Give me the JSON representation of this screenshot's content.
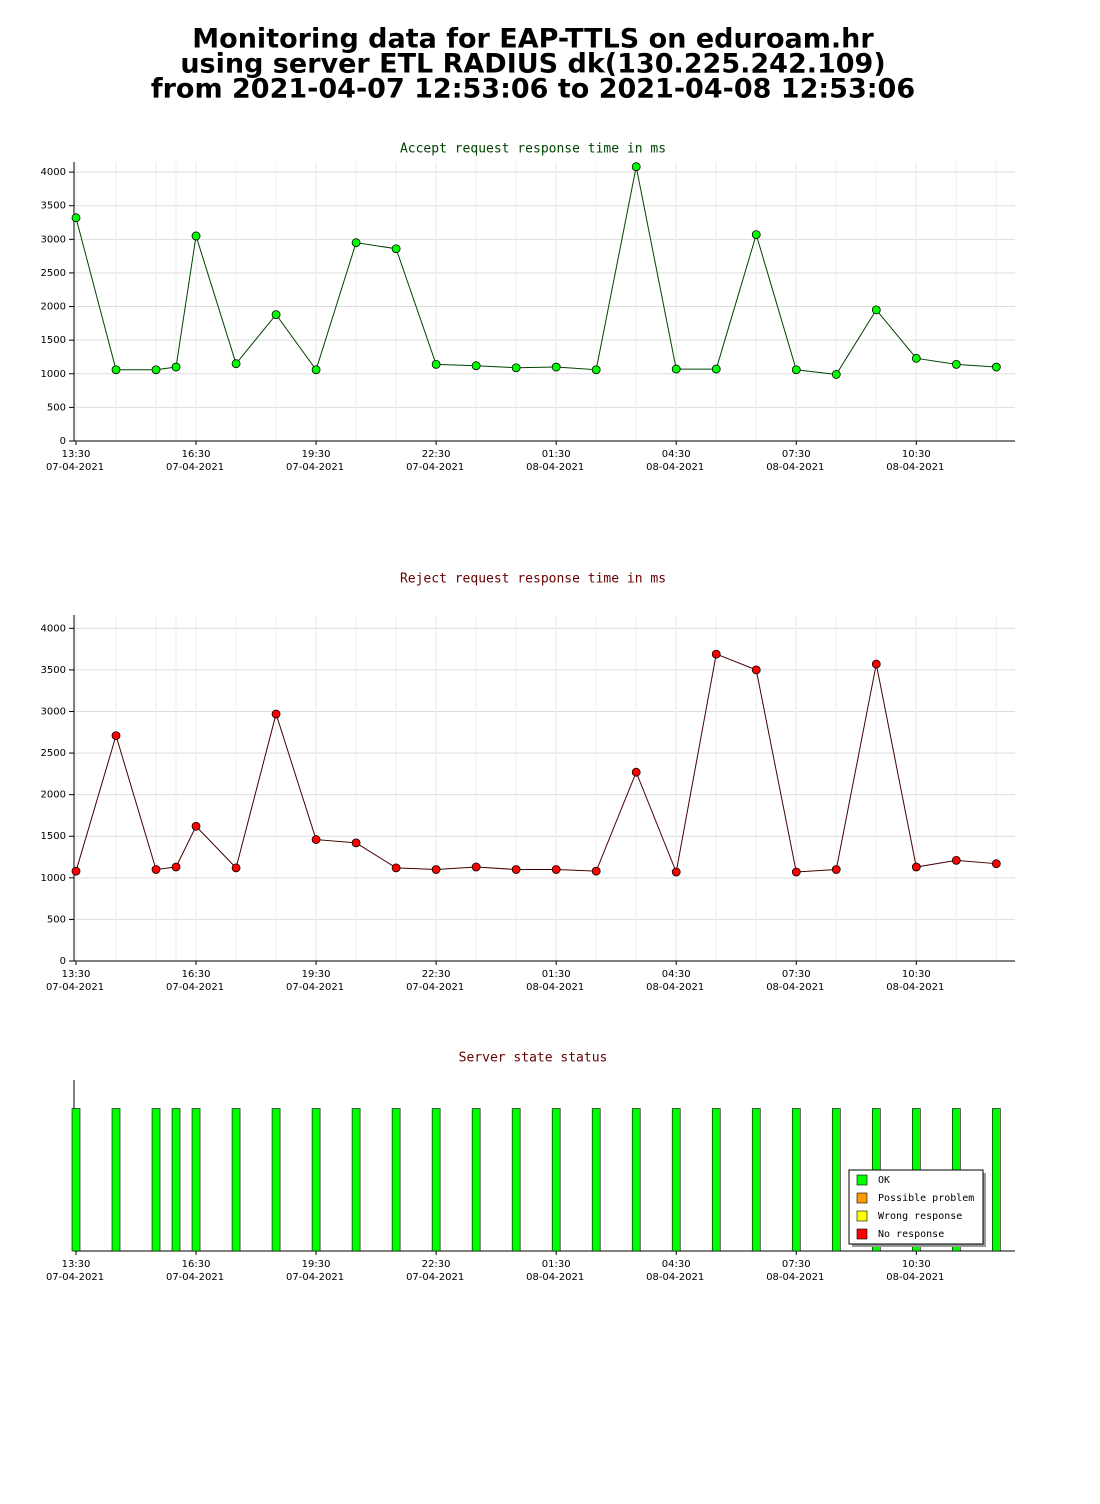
{
  "title": [
    "Monitoring data for EAP-TTLS on eduroam.hr",
    "using server ETL RADIUS dk(130.225.242.109)",
    "from 2021-04-07 12:53:06 to 2021-04-08 12:53:06"
  ],
  "chart_data": [
    {
      "type": "line",
      "title": "Accept request response time in ms",
      "title_color": "#004400",
      "x": [
        "2021-04-07 13:30",
        "2021-04-07 14:30",
        "2021-04-07 15:30",
        "2021-04-07 16:00",
        "2021-04-07 16:30",
        "2021-04-07 17:30",
        "2021-04-07 18:30",
        "2021-04-07 19:30",
        "2021-04-07 20:30",
        "2021-04-07 21:30",
        "2021-04-07 22:30",
        "2021-04-07 23:30",
        "2021-04-08 00:30",
        "2021-04-08 01:30",
        "2021-04-08 02:30",
        "2021-04-08 03:30",
        "2021-04-08 04:30",
        "2021-04-08 05:30",
        "2021-04-08 06:30",
        "2021-04-08 07:30",
        "2021-04-08 08:30",
        "2021-04-08 09:30",
        "2021-04-08 10:30",
        "2021-04-08 11:30",
        "2021-04-08 12:30"
      ],
      "series": [
        {
          "color": "#004400",
          "marker_color": "#00ff00",
          "values": [
            3320,
            1060,
            1060,
            1100,
            3050,
            1150,
            1880,
            1060,
            2950,
            2860,
            1140,
            1120,
            1090,
            1100,
            1060,
            4080,
            1070,
            1070,
            3070,
            1060,
            990,
            1950,
            1230,
            1140,
            1100
          ]
        }
      ],
      "xlim": [
        "2021-04-07 13:27",
        "2021-04-08 12:58"
      ],
      "xticks": [
        {
          "value": "2021-04-07 13:30",
          "label": [
            "13:30",
            "07-04-2021"
          ]
        },
        {
          "value": "2021-04-07 16:30",
          "label": [
            "16:30",
            "07-04-2021"
          ]
        },
        {
          "value": "2021-04-07 19:30",
          "label": [
            "19:30",
            "07-04-2021"
          ]
        },
        {
          "value": "2021-04-07 22:30",
          "label": [
            "22:30",
            "07-04-2021"
          ]
        },
        {
          "value": "2021-04-08 01:30",
          "label": [
            "01:30",
            "08-04-2021"
          ]
        },
        {
          "value": "2021-04-08 04:30",
          "label": [
            "04:30",
            "08-04-2021"
          ]
        },
        {
          "value": "2021-04-08 07:30",
          "label": [
            "07:30",
            "08-04-2021"
          ]
        },
        {
          "value": "2021-04-08 10:30",
          "label": [
            "10:30",
            "08-04-2021"
          ]
        }
      ],
      "ylim": [
        0,
        4150
      ],
      "yticks": [
        0,
        500,
        1000,
        1500,
        2000,
        2500,
        3000,
        3500,
        4000
      ],
      "grid": true
    },
    {
      "type": "line",
      "title": "Reject request response time in ms",
      "title_color": "#660000",
      "x": [
        "2021-04-07 13:30",
        "2021-04-07 14:30",
        "2021-04-07 15:30",
        "2021-04-07 16:00",
        "2021-04-07 16:30",
        "2021-04-07 17:30",
        "2021-04-07 18:30",
        "2021-04-07 19:30",
        "2021-04-07 20:30",
        "2021-04-07 21:30",
        "2021-04-07 22:30",
        "2021-04-07 23:30",
        "2021-04-08 00:30",
        "2021-04-08 01:30",
        "2021-04-08 02:30",
        "2021-04-08 03:30",
        "2021-04-08 04:30",
        "2021-04-08 05:30",
        "2021-04-08 06:30",
        "2021-04-08 07:30",
        "2021-04-08 08:30",
        "2021-04-08 09:30",
        "2021-04-08 10:30",
        "2021-04-08 11:30",
        "2021-04-08 12:30"
      ],
      "series": [
        {
          "color": "#440000",
          "marker_color": "#ff0000",
          "values": [
            1080,
            2710,
            1100,
            1130,
            1620,
            1120,
            2970,
            1460,
            1420,
            1120,
            1100,
            1130,
            1100,
            1100,
            1080,
            2270,
            1070,
            3690,
            3500,
            1070,
            1100,
            3570,
            1130,
            1210,
            1170
          ]
        }
      ],
      "xlim": [
        "2021-04-07 13:27",
        "2021-04-08 12:58"
      ],
      "xticks": [
        {
          "value": "2021-04-07 13:30",
          "label": [
            "13:30",
            "07-04-2021"
          ]
        },
        {
          "value": "2021-04-07 16:30",
          "label": [
            "16:30",
            "07-04-2021"
          ]
        },
        {
          "value": "2021-04-07 19:30",
          "label": [
            "19:30",
            "07-04-2021"
          ]
        },
        {
          "value": "2021-04-07 22:30",
          "label": [
            "22:30",
            "07-04-2021"
          ]
        },
        {
          "value": "2021-04-08 01:30",
          "label": [
            "01:30",
            "08-04-2021"
          ]
        },
        {
          "value": "2021-04-08 04:30",
          "label": [
            "04:30",
            "08-04-2021"
          ]
        },
        {
          "value": "2021-04-08 07:30",
          "label": [
            "07:30",
            "08-04-2021"
          ]
        },
        {
          "value": "2021-04-08 10:30",
          "label": [
            "10:30",
            "08-04-2021"
          ]
        }
      ],
      "ylim": [
        0,
        4160
      ],
      "yticks": [
        0,
        500,
        1000,
        1500,
        2000,
        2500,
        3000,
        3500,
        4000
      ],
      "grid": true
    },
    {
      "type": "status",
      "title": "Server state status",
      "title_color": "#660000",
      "x": [
        "2021-04-07 13:30",
        "2021-04-07 14:30",
        "2021-04-07 15:30",
        "2021-04-07 16:00",
        "2021-04-07 16:30",
        "2021-04-07 17:30",
        "2021-04-07 18:30",
        "2021-04-07 19:30",
        "2021-04-07 20:30",
        "2021-04-07 21:30",
        "2021-04-07 22:30",
        "2021-04-07 23:30",
        "2021-04-08 00:30",
        "2021-04-08 01:30",
        "2021-04-08 02:30",
        "2021-04-08 03:30",
        "2021-04-08 04:30",
        "2021-04-08 05:30",
        "2021-04-08 06:30",
        "2021-04-08 07:30",
        "2021-04-08 08:30",
        "2021-04-08 09:30",
        "2021-04-08 10:30",
        "2021-04-08 11:30",
        "2021-04-08 12:30"
      ],
      "series": [
        {
          "name": "OK",
          "color": "#00ff00",
          "values": [
            1,
            1,
            1,
            1,
            1,
            1,
            1,
            1,
            1,
            1,
            1,
            1,
            1,
            1,
            1,
            1,
            1,
            1,
            1,
            1,
            1,
            1,
            1,
            1,
            1
          ]
        },
        {
          "name": "Possible problem",
          "color": "#ff9900",
          "values": [
            0,
            0,
            0,
            0,
            0,
            0,
            0,
            0,
            0,
            0,
            0,
            0,
            0,
            0,
            0,
            0,
            0,
            0,
            0,
            0,
            0,
            0,
            0,
            0,
            0
          ]
        },
        {
          "name": "Wrong response",
          "color": "#ffff00",
          "values": [
            0,
            0,
            0,
            0,
            0,
            0,
            0,
            0,
            0,
            0,
            0,
            0,
            0,
            0,
            0,
            0,
            0,
            0,
            0,
            0,
            0,
            0,
            0,
            0,
            0
          ]
        },
        {
          "name": "No response",
          "color": "#ff0000",
          "values": [
            0,
            0,
            0,
            0,
            0,
            0,
            0,
            0,
            0,
            0,
            0,
            0,
            0,
            0,
            0,
            0,
            0,
            0,
            0,
            0,
            0,
            0,
            0,
            0,
            0
          ]
        }
      ],
      "xlim": [
        "2021-04-07 13:27",
        "2021-04-08 12:58"
      ],
      "xticks": [
        {
          "value": "2021-04-07 13:30",
          "label": [
            "13:30",
            "07-04-2021"
          ]
        },
        {
          "value": "2021-04-07 16:30",
          "label": [
            "16:30",
            "07-04-2021"
          ]
        },
        {
          "value": "2021-04-07 19:30",
          "label": [
            "19:30",
            "07-04-2021"
          ]
        },
        {
          "value": "2021-04-07 22:30",
          "label": [
            "22:30",
            "07-04-2021"
          ]
        },
        {
          "value": "2021-04-08 01:30",
          "label": [
            "01:30",
            "08-04-2021"
          ]
        },
        {
          "value": "2021-04-08 04:30",
          "label": [
            "04:30",
            "08-04-2021"
          ]
        },
        {
          "value": "2021-04-08 07:30",
          "label": [
            "07:30",
            "08-04-2021"
          ]
        },
        {
          "value": "2021-04-08 10:30",
          "label": [
            "10:30",
            "08-04-2021"
          ]
        }
      ],
      "ylim": [
        0,
        1.2
      ],
      "legend": "lower right"
    }
  ]
}
